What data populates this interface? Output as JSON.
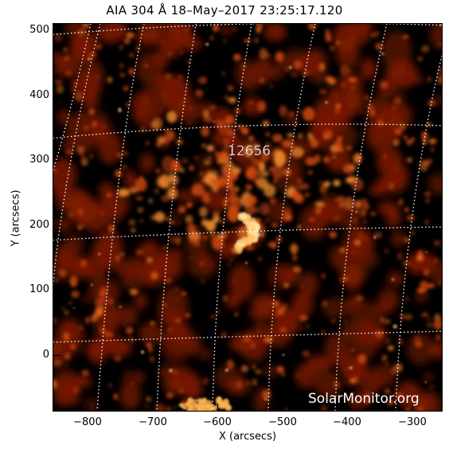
{
  "title": "AIA 304 Å 18–May–2017 23:25:17.120",
  "region_label": "12656",
  "watermark": "SolarMonitor.org",
  "xlabel": "X (arcsecs)",
  "ylabel": "Y (arcsecs)",
  "x_ticks": [
    "−800",
    "−700",
    "−600",
    "−500",
    "−400",
    "−300"
  ],
  "y_ticks": [
    "500",
    "400",
    "300",
    "200",
    "100",
    "0"
  ],
  "colors": {
    "background": "#000000",
    "emission_low": "#7a1a05",
    "emission_mid": "#d24a10",
    "emission_high": "#ffe0a0",
    "grid": "#ffffff"
  },
  "grid": "on",
  "colormap": "SDO AIA 304 red-orange"
}
